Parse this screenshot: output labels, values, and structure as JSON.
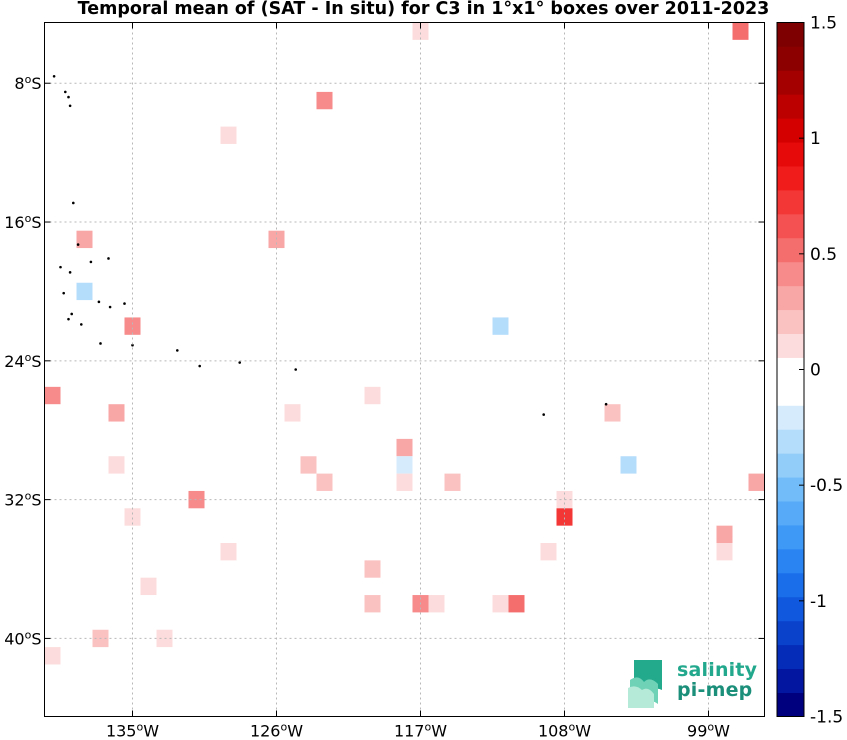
{
  "chart_data": {
    "type": "heatmap",
    "title": "Temporal mean of (SAT - In situ) for C3 in 1°x1° boxes over 2011-2023",
    "x_range_lon": [
      -140.5,
      -95.5
    ],
    "y_range_lat": [
      -44.5,
      -4.5
    ],
    "x_ticks": [
      {
        "lon": -135,
        "label": "135"
      },
      {
        "lon": -126,
        "label": "126"
      },
      {
        "lon": -117,
        "label": "117"
      },
      {
        "lon": -108,
        "label": "108"
      },
      {
        "lon": -99,
        "label": "99"
      }
    ],
    "x_tick_suffix": "W",
    "y_ticks": [
      {
        "lat": -8,
        "label": "8"
      },
      {
        "lat": -16,
        "label": "16"
      },
      {
        "lat": -24,
        "label": "24"
      },
      {
        "lat": -32,
        "label": "32"
      },
      {
        "lat": -40,
        "label": "40"
      }
    ],
    "y_tick_suffix": "S",
    "degree_symbol": "o",
    "grid": true,
    "colorbar": {
      "min": -1.5,
      "max": 1.5,
      "ticks": [
        {
          "value": 1.5,
          "label": "1.5"
        },
        {
          "value": 1,
          "label": "1"
        },
        {
          "value": 0.5,
          "label": "0.5"
        },
        {
          "value": 0,
          "label": "0"
        },
        {
          "value": -0.5,
          "label": "-0.5"
        },
        {
          "value": -1,
          "label": "-1"
        },
        {
          "value": -1.5,
          "label": "-1.5"
        }
      ],
      "colors": [
        "#00007f",
        "#0216a0",
        "#052cb8",
        "#0a42cc",
        "#1058dd",
        "#1a6eea",
        "#2a84f2",
        "#3e98f6",
        "#56aaf8",
        "#72bcf9",
        "#92cdfa",
        "#b4dcfb",
        "#d6ebfc",
        "#ffffff",
        "#ffffff",
        "#fcdcdc",
        "#fbc2c2",
        "#f9a6a6",
        "#f78a8a",
        "#f56e6e",
        "#f45252",
        "#f33636",
        "#f01c1c",
        "#e60a0a",
        "#d40000",
        "#bc0000",
        "#a40000",
        "#8c0000",
        "#7f0000"
      ]
    },
    "cells": [
      {
        "lon": -117,
        "lat": -5,
        "value": 0.12
      },
      {
        "lon": -97,
        "lat": -5,
        "value": 0.55
      },
      {
        "lon": -123,
        "lat": -9,
        "value": 0.4
      },
      {
        "lon": -129,
        "lat": -11,
        "value": 0.15
      },
      {
        "lon": -138,
        "lat": -17,
        "value": 0.35
      },
      {
        "lon": -126,
        "lat": -17,
        "value": 0.3
      },
      {
        "lon": -125,
        "lat": -17,
        "value": -0.1
      },
      {
        "lon": -138,
        "lat": -20,
        "value": -0.35
      },
      {
        "lon": -137,
        "lat": -20,
        "value": -0.15
      },
      {
        "lon": -117,
        "lat": -21,
        "value": -0.15
      },
      {
        "lon": -135,
        "lat": -22,
        "value": 0.4
      },
      {
        "lon": -126,
        "lat": -22,
        "value": -0.1
      },
      {
        "lon": -121,
        "lat": -22,
        "value": -0.1
      },
      {
        "lon": -112,
        "lat": -22,
        "value": -0.35
      },
      {
        "lon": -133,
        "lat": -24,
        "value": -0.15
      },
      {
        "lon": -140,
        "lat": -26,
        "value": 0.45
      },
      {
        "lon": -120,
        "lat": -26,
        "value": 0.15
      },
      {
        "lon": -99,
        "lat": -26,
        "value": -0.1
      },
      {
        "lon": -136,
        "lat": -27,
        "value": 0.35
      },
      {
        "lon": -125,
        "lat": -27,
        "value": 0.15
      },
      {
        "lon": -105,
        "lat": -27,
        "value": 0.2
      },
      {
        "lon": -118,
        "lat": -29,
        "value": 0.35
      },
      {
        "lon": -96,
        "lat": -29,
        "value": -0.1
      },
      {
        "lon": -137,
        "lat": -30,
        "value": -0.1
      },
      {
        "lon": -136,
        "lat": -30,
        "value": 0.15
      },
      {
        "lon": -124,
        "lat": -30,
        "value": 0.2
      },
      {
        "lon": -123,
        "lat": -30,
        "value": -0.15
      },
      {
        "lon": -118,
        "lat": -30,
        "value": -0.2
      },
      {
        "lon": -116,
        "lat": -30,
        "value": -0.1
      },
      {
        "lon": -104,
        "lat": -30,
        "value": -0.3
      },
      {
        "lon": -123,
        "lat": -31,
        "value": 0.2
      },
      {
        "lon": -118,
        "lat": -31,
        "value": 0.12
      },
      {
        "lon": -115,
        "lat": -31,
        "value": 0.2
      },
      {
        "lon": -96,
        "lat": -31,
        "value": 0.3
      },
      {
        "lon": -131,
        "lat": -32,
        "value": 0.4
      },
      {
        "lon": -108,
        "lat": -32,
        "value": 0.15
      },
      {
        "lon": -135,
        "lat": -33,
        "value": 0.15
      },
      {
        "lon": -120,
        "lat": -33,
        "value": -0.12
      },
      {
        "lon": -118,
        "lat": -33,
        "value": -0.12
      },
      {
        "lon": -108,
        "lat": -33,
        "value": 0.75
      },
      {
        "lon": -98,
        "lat": -34,
        "value": 0.3
      },
      {
        "lon": -129,
        "lat": -35,
        "value": 0.15
      },
      {
        "lon": -109,
        "lat": -35,
        "value": 0.15
      },
      {
        "lon": -98,
        "lat": -35,
        "value": 0.15
      },
      {
        "lon": -120,
        "lat": -36,
        "value": 0.2
      },
      {
        "lon": -134,
        "lat": -37,
        "value": 0.15
      },
      {
        "lon": -120,
        "lat": -38,
        "value": 0.2
      },
      {
        "lon": -117,
        "lat": -38,
        "value": 0.45
      },
      {
        "lon": -116,
        "lat": -38,
        "value": 0.15
      },
      {
        "lon": -112,
        "lat": -38,
        "value": 0.15
      },
      {
        "lon": -111,
        "lat": -38,
        "value": 0.5
      },
      {
        "lon": -138,
        "lat": -40,
        "value": -0.1
      },
      {
        "lon": -137,
        "lat": -40,
        "value": 0.2
      },
      {
        "lon": -133,
        "lat": -40,
        "value": 0.15
      },
      {
        "lon": -140,
        "lat": -41,
        "value": 0.15
      },
      {
        "lon": -134,
        "lat": -41,
        "value": -0.1
      },
      {
        "lon": -107,
        "lat": -41,
        "value": -0.1
      }
    ],
    "land": [
      {
        "lon": -139.9,
        "lat": -7.6
      },
      {
        "lon": -139.2,
        "lat": -8.5
      },
      {
        "lon": -139.0,
        "lat": -8.8
      },
      {
        "lon": -138.9,
        "lat": -9.3
      },
      {
        "lon": -138.7,
        "lat": -14.9
      },
      {
        "lon": -138.4,
        "lat": -17.3
      },
      {
        "lon": -136.5,
        "lat": -18.1
      },
      {
        "lon": -137.6,
        "lat": -18.3
      },
      {
        "lon": -139.5,
        "lat": -18.6
      },
      {
        "lon": -138.9,
        "lat": -18.9
      },
      {
        "lon": -139.3,
        "lat": -20.1
      },
      {
        "lon": -137.1,
        "lat": -20.6
      },
      {
        "lon": -136.4,
        "lat": -20.9
      },
      {
        "lon": -135.5,
        "lat": -20.7
      },
      {
        "lon": -138.8,
        "lat": -21.3
      },
      {
        "lon": -139.0,
        "lat": -21.6
      },
      {
        "lon": -138.2,
        "lat": -21.9
      },
      {
        "lon": -137.0,
        "lat": -23.0
      },
      {
        "lon": -135.0,
        "lat": -23.1
      },
      {
        "lon": -132.2,
        "lat": -23.4
      },
      {
        "lon": -130.8,
        "lat": -24.3
      },
      {
        "lon": -128.3,
        "lat": -24.1
      },
      {
        "lon": -124.8,
        "lat": -24.5
      },
      {
        "lon": -109.3,
        "lat": -27.1
      },
      {
        "lon": -105.4,
        "lat": -26.5
      }
    ],
    "logo": [
      "salinity",
      "pi-mep"
    ]
  }
}
